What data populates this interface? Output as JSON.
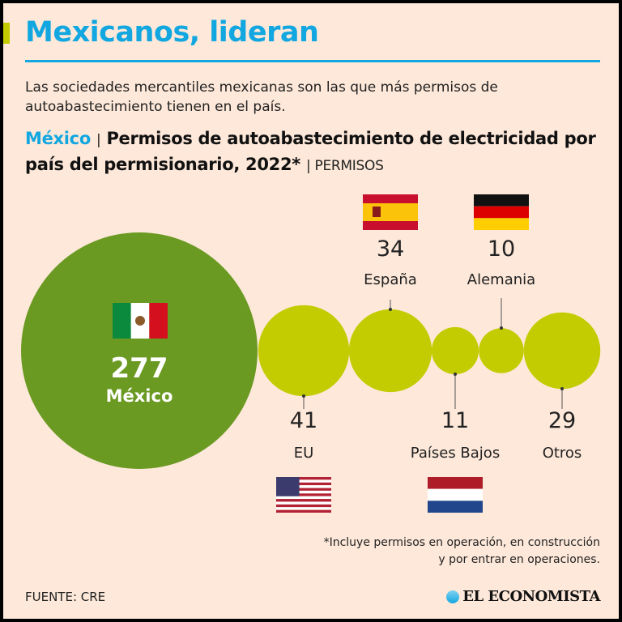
{
  "header": {
    "title": "Mexicanos, lideran",
    "intro": "Las sociedades mercantiles mexicanas son las que más permisos de autoabastecimiento tienen en el país."
  },
  "subtitle": {
    "country": "México",
    "pipe": "|",
    "text": "Permisos de autoabastecimiento de electricidad por país del permisionario, 2022*",
    "unit": "| PERMISOS"
  },
  "colors": {
    "accent": "#12a7e0",
    "mexico_bubble": "#6b9a23",
    "other_bubble": "#c3cc00",
    "background": "#fde8d9"
  },
  "chart_data": {
    "type": "bubble",
    "title": "Permisos de autoabastecimiento de electricidad por país del permisionario, 2022*",
    "unit": "PERMISOS",
    "categories": [
      "México",
      "EU",
      "España",
      "Países Bajos",
      "Alemania",
      "Otros"
    ],
    "values": [
      277,
      41,
      34,
      11,
      10,
      29
    ],
    "value_labels": [
      "277",
      "41",
      "34",
      "11",
      "10",
      "29"
    ],
    "flags": [
      "mexico-flag",
      "usa-flag",
      "spain-flag",
      "netherlands-flag",
      "germany-flag",
      null
    ]
  },
  "footer": {
    "note_line1": "*Incluye permisos en operación, en construcción",
    "note_line2": "y por entrar en operaciones.",
    "source": "FUENTE: CRE",
    "logo": "EL ECONOMISTA"
  }
}
